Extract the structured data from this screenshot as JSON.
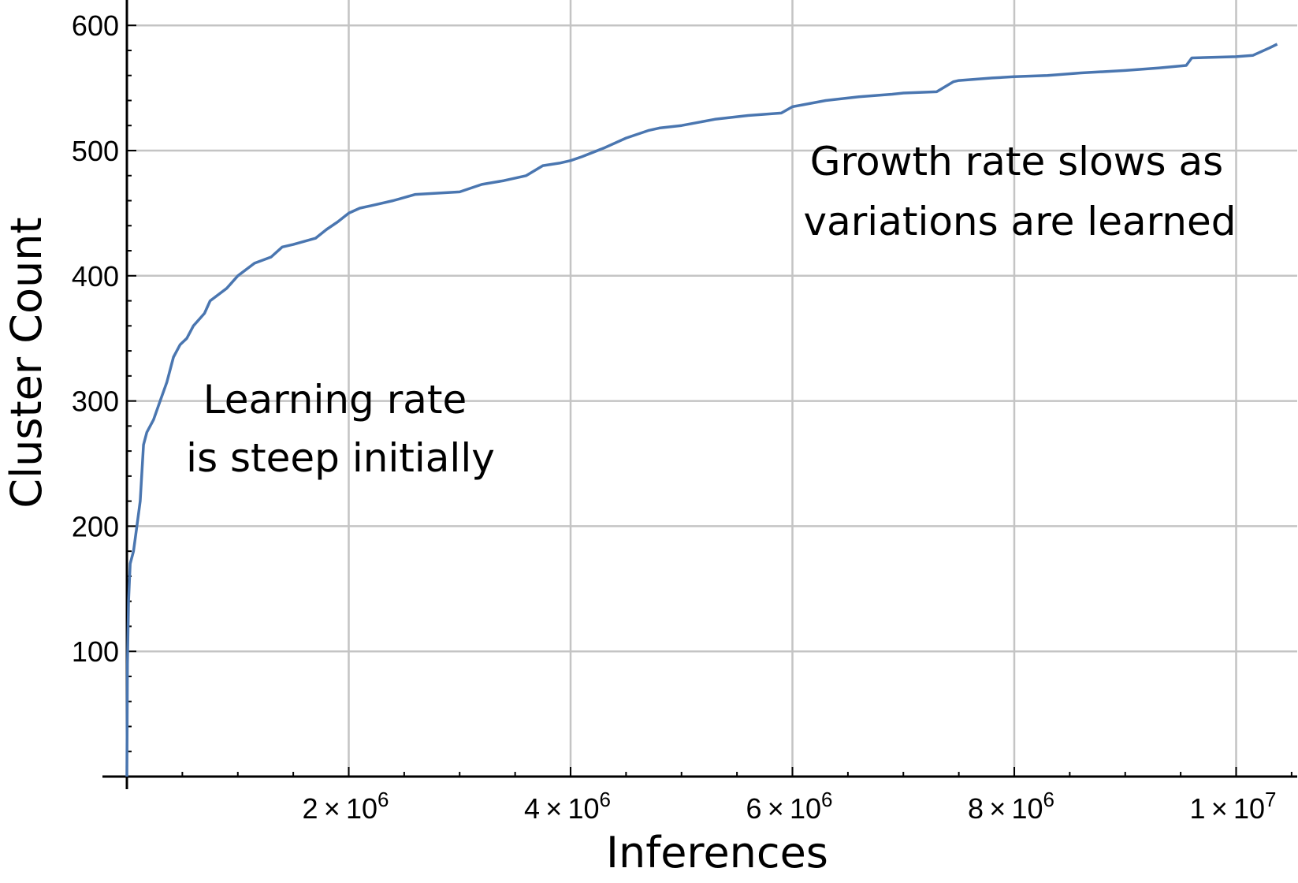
{
  "chart_data": {
    "type": "line",
    "xlabel": "Inferences",
    "ylabel": "Cluster Count",
    "xlim": [
      0,
      10500000
    ],
    "ylim": [
      0,
      620
    ],
    "grid": true,
    "x_ticks": [
      {
        "value": 2000000,
        "mantissa": "2",
        "exponent": "6"
      },
      {
        "value": 4000000,
        "mantissa": "4",
        "exponent": "6"
      },
      {
        "value": 6000000,
        "mantissa": "6",
        "exponent": "6"
      },
      {
        "value": 8000000,
        "mantissa": "8",
        "exponent": "6"
      },
      {
        "value": 10000000,
        "mantissa": "1",
        "exponent": "7"
      }
    ],
    "y_ticks": [
      100,
      200,
      300,
      400,
      500,
      600
    ],
    "colors": {
      "series": "#4a76b0",
      "grid": "#c4c4c4"
    },
    "series": [
      {
        "x": [
          0,
          5000,
          15000,
          30000,
          60000,
          90000,
          120000,
          150000,
          180000,
          240000,
          300000,
          360000,
          420000,
          480000,
          540000,
          600000,
          700000,
          750000,
          900000,
          1000000,
          1150000,
          1300000,
          1400000,
          1500000,
          1700000,
          1800000,
          1900000,
          2000000,
          2100000,
          2200000,
          2400000,
          2600000,
          2800000,
          3000000,
          3100000,
          3200000,
          3400000,
          3600000,
          3750000,
          3900000,
          4000000,
          4100000,
          4300000,
          4500000,
          4700000,
          4800000,
          5000000,
          5300000,
          5600000,
          5900000,
          6000000,
          6300000,
          6600000,
          6900000,
          7000000,
          7300000,
          7450000,
          7500000,
          7800000,
          8000000,
          8300000,
          8600000,
          9000000,
          9300000,
          9550000,
          9600000,
          10000000,
          10150000,
          10300000,
          10370000
        ],
        "y": [
          0,
          90,
          140,
          170,
          180,
          200,
          220,
          265,
          275,
          285,
          300,
          315,
          335,
          345,
          350,
          360,
          370,
          380,
          390,
          400,
          410,
          415,
          423,
          425,
          430,
          437,
          443,
          450,
          454,
          456,
          460,
          465,
          466,
          467,
          470,
          473,
          476,
          480,
          488,
          490,
          492,
          495,
          502,
          510,
          516,
          518,
          520,
          525,
          528,
          530,
          535,
          540,
          543,
          545,
          546,
          547,
          555,
          556,
          558,
          559,
          560,
          562,
          564,
          566,
          568,
          574,
          575,
          576,
          582,
          585
        ]
      }
    ],
    "annotations": [
      {
        "lines": [
          "Learning rate",
          "is steep initially"
        ]
      },
      {
        "lines": [
          "Growth rate slows as",
          "variations are learned"
        ]
      }
    ]
  }
}
